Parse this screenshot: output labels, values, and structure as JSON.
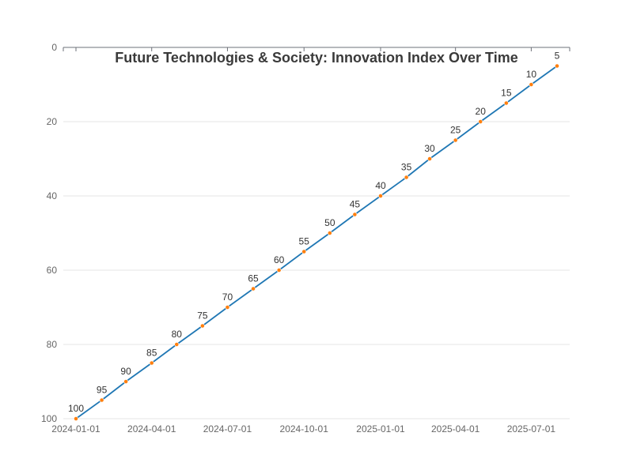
{
  "chart_data": {
    "type": "line",
    "title": "Future Technologies & Society: Innovation Index Over Time",
    "xlabel": "",
    "ylabel": "",
    "x": [
      "2024-01-01",
      "2024-02-01",
      "2024-03-01",
      "2024-04-01",
      "2024-05-01",
      "2024-06-01",
      "2024-07-01",
      "2024-08-01",
      "2024-09-01",
      "2024-10-01",
      "2024-11-01",
      "2024-12-01",
      "2025-01-01",
      "2025-02-01",
      "2025-03-01",
      "2025-04-01",
      "2025-05-01",
      "2025-06-01",
      "2025-07-01",
      "2025-08-01"
    ],
    "series": [
      {
        "values": [
          100,
          95,
          90,
          85,
          80,
          75,
          70,
          65,
          60,
          55,
          50,
          45,
          40,
          35,
          30,
          25,
          20,
          15,
          10,
          5
        ]
      }
    ],
    "x_ticks": [
      "2024-01-01",
      "2024-04-01",
      "2024-07-01",
      "2024-10-01",
      "2025-01-01",
      "2025-04-01",
      "2025-07-01"
    ],
    "y_ticks": [
      0,
      20,
      40,
      60,
      80,
      100
    ],
    "ylim": [
      0,
      100
    ],
    "y_axis_inverted": true,
    "x_axis_position": "top",
    "grid": "horizontal",
    "show_data_labels": true,
    "colors": {
      "line": "#1f77b4",
      "marker": "#ff7f0e",
      "grid": "#e6e6e6",
      "axis": "#6e7079"
    }
  }
}
